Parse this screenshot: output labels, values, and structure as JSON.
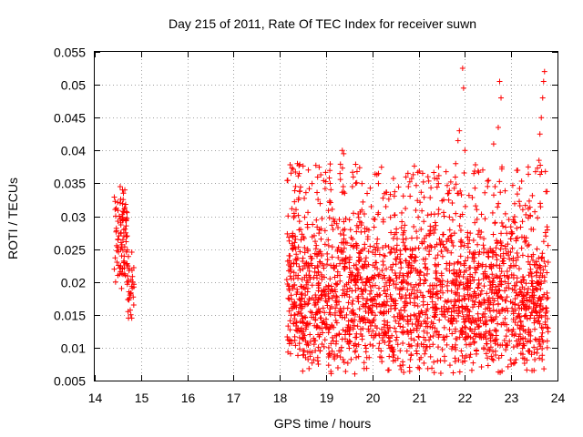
{
  "chart_data": {
    "type": "scatter",
    "title": "Day 215 of 2011, Rate Of TEC Index for receiver suwn",
    "xlabel": "GPS time / hours",
    "ylabel": "ROTI / TECUs",
    "xlim": [
      14,
      24
    ],
    "ylim": [
      0.005,
      0.055
    ],
    "x_ticks": [
      "14",
      "15",
      "16",
      "17",
      "18",
      "19",
      "20",
      "21",
      "22",
      "23",
      "24"
    ],
    "y_ticks": [
      "0.005",
      "0.01",
      "0.015",
      "0.02",
      "0.025",
      "0.03",
      "0.035",
      "0.04",
      "0.045",
      "0.05",
      "0.055"
    ],
    "grid": true,
    "legend": "none",
    "marker": "+",
    "series_color": "#ff0000",
    "clusters": [
      {
        "x": [
          14.42,
          14.85
        ],
        "y": [
          0.0145,
          0.0345
        ]
      },
      {
        "x": [
          18.15,
          23.8
        ],
        "y": [
          0.006,
          0.053
        ]
      }
    ],
    "points": [
      [
        14.45,
        0.02
      ],
      [
        14.48,
        0.023
      ],
      [
        14.5,
        0.0265
      ],
      [
        14.52,
        0.027
      ],
      [
        14.53,
        0.03
      ],
      [
        14.55,
        0.032
      ],
      [
        14.55,
        0.0345
      ],
      [
        14.57,
        0.026
      ],
      [
        14.6,
        0.022
      ],
      [
        14.6,
        0.034
      ],
      [
        14.62,
        0.0335
      ],
      [
        14.63,
        0.027
      ],
      [
        14.65,
        0.034
      ],
      [
        14.66,
        0.021
      ],
      [
        14.68,
        0.0295
      ],
      [
        14.7,
        0.027
      ],
      [
        14.7,
        0.02
      ],
      [
        14.72,
        0.0155
      ],
      [
        14.74,
        0.0185
      ],
      [
        14.75,
        0.022
      ],
      [
        14.76,
        0.018
      ],
      [
        14.78,
        0.015
      ],
      [
        14.8,
        0.0145
      ],
      [
        14.82,
        0.02
      ],
      [
        14.5,
        0.021
      ],
      [
        14.58,
        0.019
      ],
      [
        18.18,
        0.0175
      ],
      [
        18.2,
        0.024
      ],
      [
        18.25,
        0.011
      ],
      [
        18.28,
        0.016
      ],
      [
        18.3,
        0.0205
      ],
      [
        18.32,
        0.026
      ],
      [
        18.35,
        0.031
      ],
      [
        18.38,
        0.038
      ],
      [
        18.4,
        0.0325
      ],
      [
        18.42,
        0.0365
      ],
      [
        18.45,
        0.028
      ],
      [
        18.5,
        0.022
      ],
      [
        18.55,
        0.018
      ],
      [
        18.6,
        0.025
      ],
      [
        18.65,
        0.012
      ],
      [
        18.7,
        0.0195
      ],
      [
        18.75,
        0.0165
      ],
      [
        18.8,
        0.021
      ],
      [
        18.85,
        0.0155
      ],
      [
        18.9,
        0.024
      ],
      [
        18.95,
        0.0185
      ],
      [
        19.0,
        0.013
      ],
      [
        19.05,
        0.0175
      ],
      [
        19.1,
        0.0225
      ],
      [
        19.15,
        0.028
      ],
      [
        19.2,
        0.016
      ],
      [
        19.25,
        0.021
      ],
      [
        19.3,
        0.0365
      ],
      [
        19.35,
        0.04
      ],
      [
        19.38,
        0.0395
      ],
      [
        19.4,
        0.0335
      ],
      [
        19.42,
        0.026
      ],
      [
        19.45,
        0.0185
      ],
      [
        19.5,
        0.012
      ],
      [
        19.55,
        0.0155
      ],
      [
        19.6,
        0.0225
      ],
      [
        19.62,
        0.006
      ],
      [
        19.65,
        0.0085
      ],
      [
        19.7,
        0.017
      ],
      [
        19.75,
        0.0235
      ],
      [
        19.8,
        0.014
      ],
      [
        19.85,
        0.0195
      ],
      [
        19.9,
        0.0265
      ],
      [
        19.95,
        0.0105
      ],
      [
        20.0,
        0.0165
      ],
      [
        20.05,
        0.021
      ],
      [
        20.1,
        0.013
      ],
      [
        20.15,
        0.018
      ],
      [
        20.2,
        0.0085
      ],
      [
        20.25,
        0.0155
      ],
      [
        20.3,
        0.022
      ],
      [
        20.35,
        0.0125
      ],
      [
        20.4,
        0.0275
      ],
      [
        20.45,
        0.017
      ],
      [
        20.5,
        0.0235
      ],
      [
        20.55,
        0.0105
      ],
      [
        20.6,
        0.0145
      ],
      [
        20.65,
        0.02
      ],
      [
        20.7,
        0.0255
      ],
      [
        20.75,
        0.0125
      ],
      [
        20.8,
        0.018
      ],
      [
        20.85,
        0.0225
      ],
      [
        20.9,
        0.015
      ],
      [
        20.95,
        0.0095
      ],
      [
        21.0,
        0.0195
      ],
      [
        21.05,
        0.0085
      ],
      [
        21.1,
        0.0165
      ],
      [
        21.15,
        0.0235
      ],
      [
        21.2,
        0.036
      ],
      [
        21.25,
        0.0285
      ],
      [
        21.3,
        0.0195
      ],
      [
        21.35,
        0.013
      ],
      [
        21.4,
        0.0205
      ],
      [
        21.45,
        0.0265
      ],
      [
        21.5,
        0.0155
      ],
      [
        21.55,
        0.03
      ],
      [
        21.6,
        0.022
      ],
      [
        21.65,
        0.0335
      ],
      [
        21.7,
        0.0145
      ],
      [
        21.75,
        0.0255
      ],
      [
        21.8,
        0.038
      ],
      [
        21.85,
        0.0415
      ],
      [
        21.88,
        0.043
      ],
      [
        21.9,
        0.03
      ],
      [
        21.92,
        0.0095
      ],
      [
        21.95,
        0.0525
      ],
      [
        21.97,
        0.0495
      ],
      [
        22.0,
        0.04
      ],
      [
        22.05,
        0.0205
      ],
      [
        22.1,
        0.0155
      ],
      [
        22.15,
        0.0125
      ],
      [
        22.2,
        0.0185
      ],
      [
        22.25,
        0.0095
      ],
      [
        22.3,
        0.0225
      ],
      [
        22.35,
        0.0165
      ],
      [
        22.4,
        0.0205
      ],
      [
        22.45,
        0.0135
      ],
      [
        22.5,
        0.0245
      ],
      [
        22.55,
        0.0195
      ],
      [
        22.6,
        0.0305
      ],
      [
        22.62,
        0.041
      ],
      [
        22.65,
        0.0345
      ],
      [
        22.7,
        0.026
      ],
      [
        22.72,
        0.0435
      ],
      [
        22.75,
        0.0505
      ],
      [
        22.78,
        0.048
      ],
      [
        22.8,
        0.0375
      ],
      [
        22.82,
        0.0285
      ],
      [
        22.85,
        0.021
      ],
      [
        22.9,
        0.0135
      ],
      [
        22.95,
        0.0295
      ],
      [
        23.0,
        0.0075
      ],
      [
        23.05,
        0.0155
      ],
      [
        23.1,
        0.0225
      ],
      [
        23.15,
        0.0105
      ],
      [
        23.2,
        0.0185
      ],
      [
        23.25,
        0.031
      ],
      [
        23.3,
        0.0125
      ],
      [
        23.35,
        0.0255
      ],
      [
        23.4,
        0.0095
      ],
      [
        23.45,
        0.0065
      ],
      [
        23.5,
        0.0145
      ],
      [
        23.55,
        0.0215
      ],
      [
        23.6,
        0.0385
      ],
      [
        23.62,
        0.0425
      ],
      [
        23.65,
        0.045
      ],
      [
        23.68,
        0.048
      ],
      [
        23.7,
        0.0505
      ],
      [
        23.72,
        0.052
      ],
      [
        23.74,
        0.0275
      ],
      [
        23.76,
        0.016
      ],
      [
        23.78,
        0.011
      ],
      [
        22.0,
        0.0175
      ],
      [
        22.3,
        0.018
      ],
      [
        21.1,
        0.017
      ],
      [
        20.5,
        0.016
      ],
      [
        18.9,
        0.0175
      ],
      [
        19.2,
        0.0185
      ],
      [
        20.7,
        0.017
      ],
      [
        21.7,
        0.017
      ],
      [
        22.9,
        0.016
      ],
      [
        23.3,
        0.0165
      ],
      [
        19.8,
        0.0175
      ],
      [
        21.4,
        0.0185
      ],
      [
        22.6,
        0.0175
      ],
      [
        23.6,
        0.0175
      ],
      [
        18.6,
        0.0185
      ],
      [
        20.3,
        0.0165
      ]
    ]
  }
}
